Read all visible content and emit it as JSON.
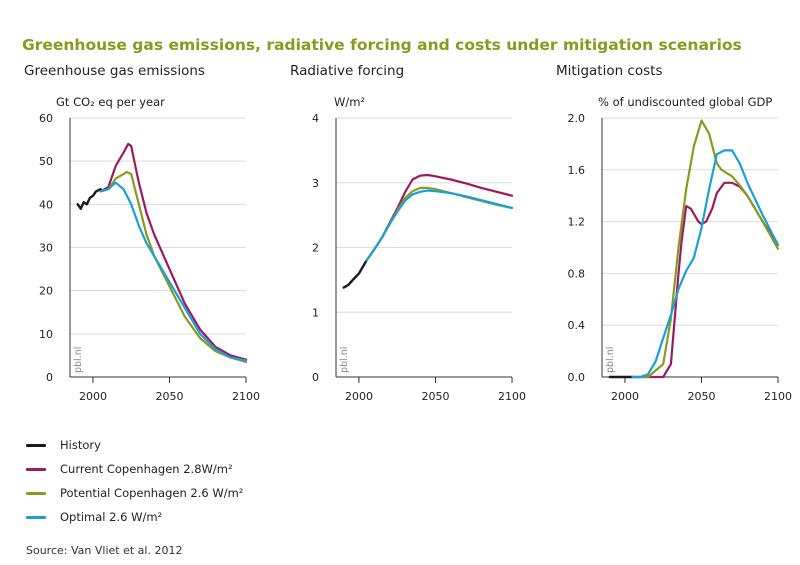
{
  "title": "Greenhouse gas emissions, radiative forcing and costs under mitigation scenarios",
  "source": "Source: Van Vliet et al. 2012",
  "watermark": "pbl.nl",
  "colors": {
    "history": "#1a1a1a",
    "current_copenhagen": "#9b1b5e",
    "potential_copenhagen": "#8a9a1e",
    "optimal": "#1aa0d8",
    "grid": "#dcdcdc",
    "axis": "#333333",
    "title": "#8a9a1e"
  },
  "legend": [
    {
      "key": "history",
      "label": "History"
    },
    {
      "key": "current_copenhagen",
      "label": "Current Copenhagen 2.8W/m²"
    },
    {
      "key": "potential_copenhagen",
      "label": "Potential Copenhagen 2.6 W/m²"
    },
    {
      "key": "optimal",
      "label": "Optimal 2.6 W/m²"
    }
  ],
  "chart_data": [
    {
      "type": "line",
      "title": "Greenhouse gas emissions",
      "ylabel": "Gt CO₂ eq per year",
      "xlim": [
        1985,
        2100
      ],
      "ylim": [
        0,
        60
      ],
      "xticks": [
        2000,
        2050,
        2100
      ],
      "xtick_labels": [
        "2000",
        "2050",
        "2100"
      ],
      "yticks": [
        0,
        10,
        20,
        30,
        40,
        50,
        60
      ],
      "ytick_labels": [
        "0",
        "10",
        "20",
        "30",
        "40",
        "50",
        "60"
      ],
      "series": [
        {
          "key": "history",
          "name": "History",
          "x": [
            1990,
            1992,
            1994,
            1996,
            1998,
            2000,
            2002,
            2005
          ],
          "y": [
            40,
            39,
            40.5,
            40,
            41.5,
            42,
            43,
            43.5
          ]
        },
        {
          "key": "current_copenhagen",
          "name": "Current Copenhagen 2.8W/m²",
          "x": [
            2005,
            2010,
            2015,
            2020,
            2023,
            2025,
            2027,
            2030,
            2035,
            2040,
            2050,
            2060,
            2070,
            2080,
            2090,
            2100
          ],
          "y": [
            43,
            44,
            49,
            52,
            54,
            53.5,
            50,
            45,
            38,
            33,
            25,
            17,
            11,
            7,
            5,
            4
          ]
        },
        {
          "key": "potential_copenhagen",
          "name": "Potential Copenhagen 2.6 W/m²",
          "x": [
            2005,
            2010,
            2015,
            2020,
            2022,
            2025,
            2030,
            2035,
            2040,
            2050,
            2060,
            2070,
            2080,
            2090,
            2100
          ],
          "y": [
            43,
            43.5,
            46,
            47,
            47.5,
            47,
            40,
            33,
            28,
            21,
            14,
            9,
            6,
            4.5,
            3.5
          ]
        },
        {
          "key": "optimal",
          "name": "Optimal 2.6 W/m²",
          "x": [
            2005,
            2010,
            2013,
            2015,
            2020,
            2025,
            2030,
            2035,
            2040,
            2050,
            2060,
            2070,
            2080,
            2090,
            2100
          ],
          "y": [
            43,
            43.5,
            44.5,
            45,
            43.5,
            40,
            35,
            31,
            28,
            22,
            16,
            10,
            6.5,
            4.5,
            3.8
          ]
        }
      ]
    },
    {
      "type": "line",
      "title": "Radiative forcing",
      "ylabel": "W/m²",
      "xlim": [
        1985,
        2100
      ],
      "ylim": [
        0,
        4
      ],
      "xticks": [
        2000,
        2050,
        2100
      ],
      "xtick_labels": [
        "2000",
        "2050",
        "2100"
      ],
      "yticks": [
        0,
        1,
        2,
        3,
        4
      ],
      "ytick_labels": [
        "0",
        "1",
        "2",
        "3",
        "4"
      ],
      "series": [
        {
          "key": "history",
          "name": "History",
          "x": [
            1990,
            1993,
            1996,
            2000,
            2005
          ],
          "y": [
            1.38,
            1.42,
            1.5,
            1.6,
            1.8
          ]
        },
        {
          "key": "current_copenhagen",
          "name": "Current Copenhagen 2.8W/m²",
          "x": [
            2005,
            2010,
            2015,
            2020,
            2025,
            2030,
            2035,
            2040,
            2045,
            2050,
            2060,
            2070,
            2080,
            2090,
            2100
          ],
          "y": [
            1.8,
            1.97,
            2.15,
            2.38,
            2.6,
            2.85,
            3.05,
            3.11,
            3.12,
            3.1,
            3.05,
            2.99,
            2.92,
            2.86,
            2.8
          ]
        },
        {
          "key": "potential_copenhagen",
          "name": "Potential Copenhagen 2.6 W/m²",
          "x": [
            2005,
            2010,
            2015,
            2020,
            2025,
            2030,
            2035,
            2040,
            2045,
            2050,
            2060,
            2070,
            2080,
            2090,
            2100
          ],
          "y": [
            1.8,
            1.97,
            2.15,
            2.37,
            2.57,
            2.76,
            2.87,
            2.92,
            2.92,
            2.9,
            2.84,
            2.78,
            2.72,
            2.66,
            2.61
          ]
        },
        {
          "key": "optimal",
          "name": "Optimal 2.6 W/m²",
          "x": [
            2005,
            2010,
            2015,
            2020,
            2025,
            2030,
            2035,
            2040,
            2045,
            2050,
            2060,
            2070,
            2080,
            2090,
            2100
          ],
          "y": [
            1.8,
            1.97,
            2.15,
            2.36,
            2.55,
            2.72,
            2.82,
            2.86,
            2.88,
            2.87,
            2.84,
            2.79,
            2.73,
            2.67,
            2.61
          ]
        }
      ]
    },
    {
      "type": "line",
      "title": "Mitigation costs",
      "ylabel": "% of undiscounted global GDP",
      "xlim": [
        1985,
        2100
      ],
      "ylim": [
        0,
        2
      ],
      "xticks": [
        2000,
        2050,
        2100
      ],
      "xtick_labels": [
        "2000",
        "2050",
        "2100"
      ],
      "yticks": [
        0,
        0.4,
        0.8,
        1.2,
        1.6,
        2.0
      ],
      "ytick_labels": [
        "0.0",
        "0.4",
        "0.8",
        "1.2",
        "1.6",
        "2.0"
      ],
      "series": [
        {
          "key": "history",
          "name": "History",
          "x": [
            1990,
            2005
          ],
          "y": [
            0,
            0
          ]
        },
        {
          "key": "current_copenhagen",
          "name": "Current Copenhagen 2.8W/m²",
          "x": [
            2005,
            2015,
            2025,
            2030,
            2035,
            2037,
            2040,
            2043,
            2048,
            2050,
            2053,
            2057,
            2060,
            2065,
            2070,
            2075,
            2080,
            2090,
            2100
          ],
          "y": [
            0,
            0,
            0,
            0.1,
            0.8,
            1.05,
            1.32,
            1.3,
            1.2,
            1.18,
            1.2,
            1.3,
            1.42,
            1.5,
            1.5,
            1.47,
            1.4,
            1.2,
            1.02
          ]
        },
        {
          "key": "potential_copenhagen",
          "name": "Potential Copenhagen 2.6 W/m²",
          "x": [
            2005,
            2015,
            2020,
            2025,
            2030,
            2035,
            2040,
            2045,
            2050,
            2055,
            2060,
            2063,
            2070,
            2075,
            2080,
            2090,
            2100
          ],
          "y": [
            0,
            0,
            0.05,
            0.1,
            0.45,
            1.0,
            1.45,
            1.78,
            1.98,
            1.88,
            1.65,
            1.6,
            1.55,
            1.48,
            1.4,
            1.2,
            0.99
          ]
        },
        {
          "key": "optimal",
          "name": "Optimal 2.6 W/m²",
          "x": [
            2005,
            2010,
            2015,
            2020,
            2025,
            2030,
            2035,
            2040,
            2045,
            2050,
            2055,
            2060,
            2065,
            2070,
            2075,
            2080,
            2090,
            2100
          ],
          "y": [
            0,
            0,
            0.02,
            0.12,
            0.3,
            0.48,
            0.68,
            0.82,
            0.92,
            1.15,
            1.45,
            1.72,
            1.75,
            1.75,
            1.65,
            1.5,
            1.25,
            1.02
          ]
        }
      ]
    }
  ]
}
